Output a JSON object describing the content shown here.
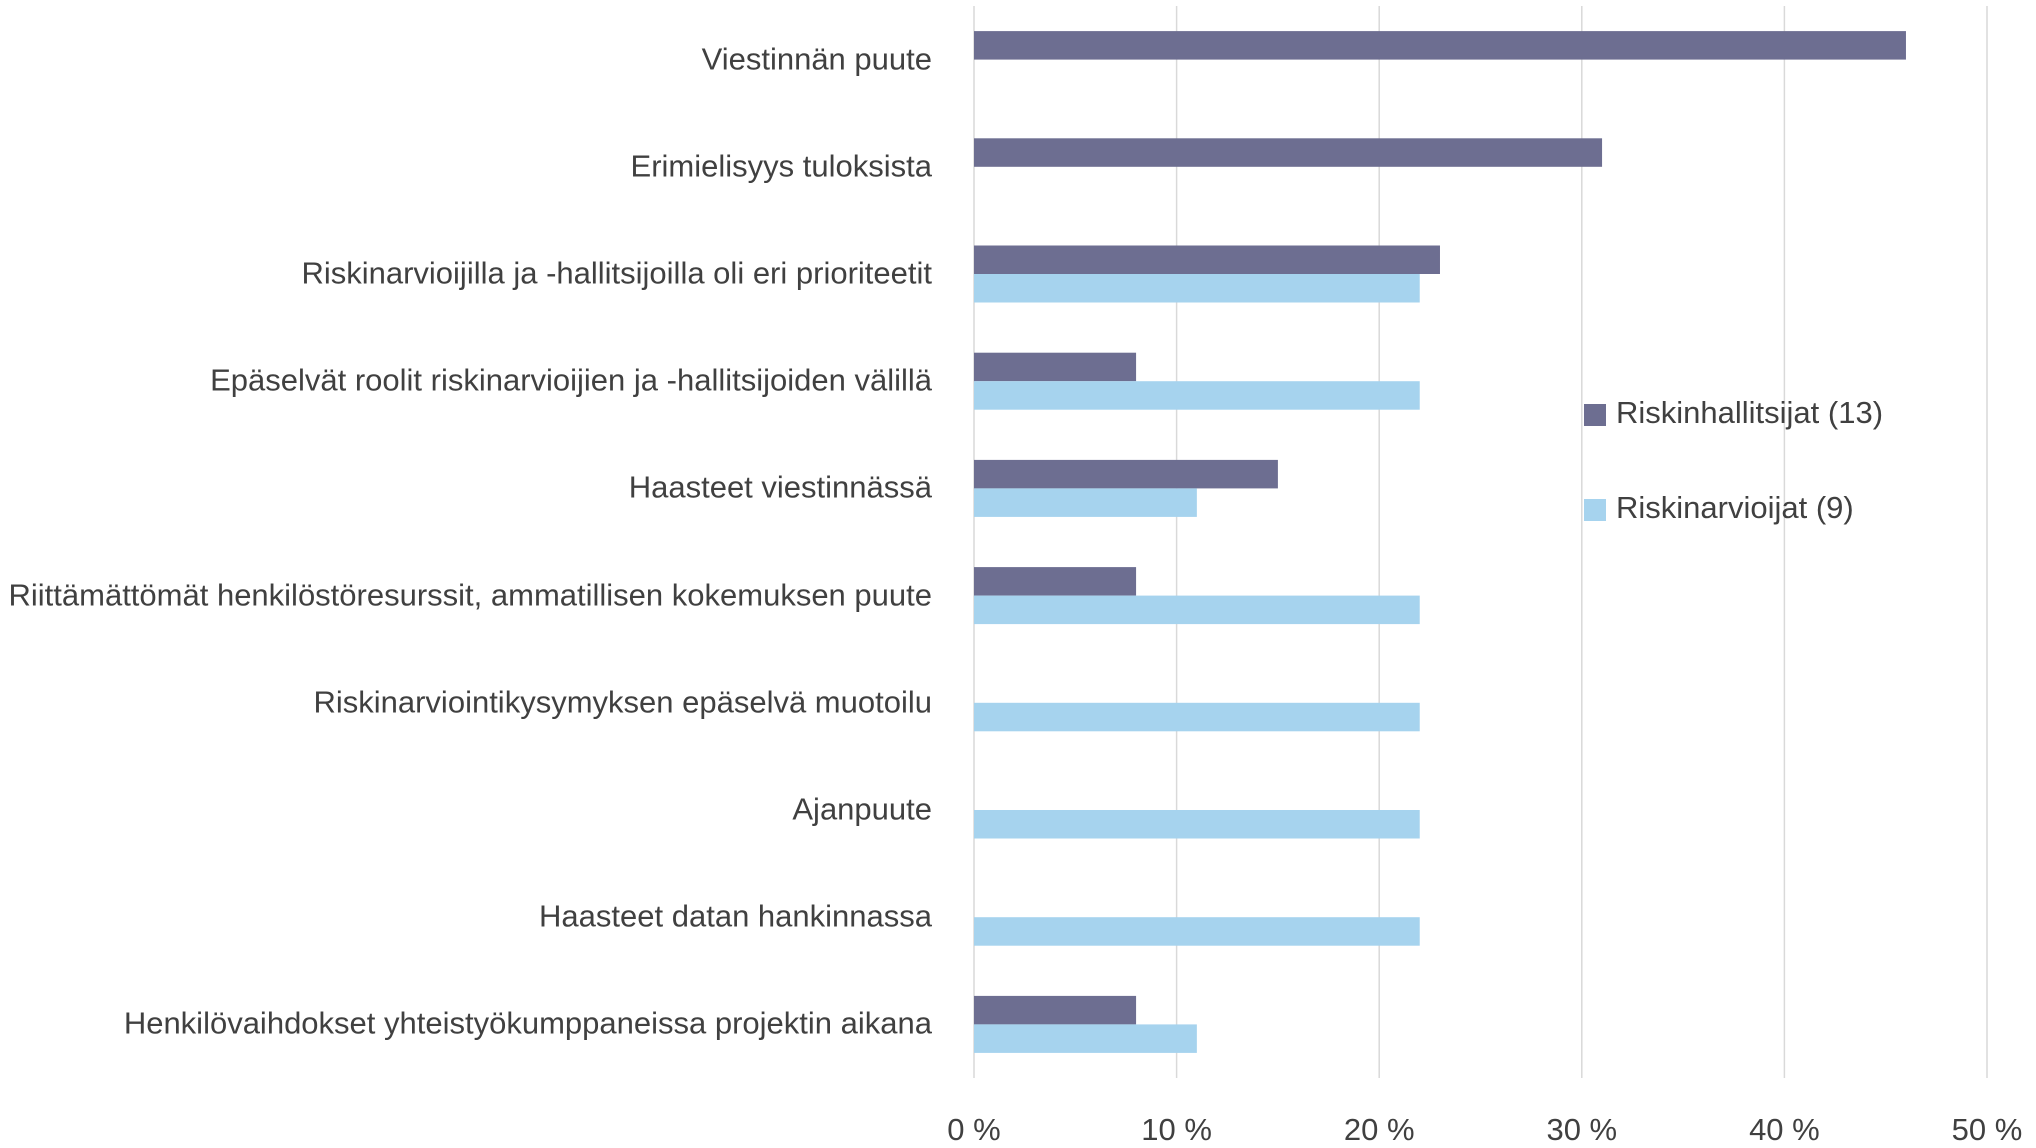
{
  "chart_data": {
    "type": "barh",
    "categories": [
      "Viestinnän puute",
      "Erimielisyys tuloksista",
      "Riskinarvioijilla ja -hallitsijoilla oli eri prioriteetit",
      "Epäselvät roolit riskinarvioijien ja -hallitsijoiden välillä",
      "Haasteet viestinnässä",
      "Riittämättömät henkilöstöresurssit, ammatillisen kokemuksen puute",
      "Riskinarviointikysymyksen epäselvä muotoilu",
      "Ajanpuute",
      "Haasteet datan hankinnassa",
      "Henkilövaihdokset yhteistyökumppaneissa projektin aikana"
    ],
    "series": [
      {
        "name": "Riskinhallitsijat (13)",
        "color": "#6d6e91",
        "values": [
          46,
          31,
          23,
          8,
          15,
          8,
          0,
          0,
          0,
          8
        ]
      },
      {
        "name": "Riskinarvioijat (9)",
        "color": "#a6d3ee",
        "values": [
          0,
          0,
          22,
          22,
          11,
          22,
          22,
          22,
          22,
          11
        ]
      }
    ],
    "xlim": [
      0,
      50
    ],
    "xticks": [
      {
        "value": 0,
        "label": "0 %"
      },
      {
        "value": 10,
        "label": "10 %"
      },
      {
        "value": 20,
        "label": "20 %"
      },
      {
        "value": 30,
        "label": "30 %"
      },
      {
        "value": 40,
        "label": "40 %"
      },
      {
        "value": 50,
        "label": "50 %"
      }
    ],
    "grid": true
  }
}
